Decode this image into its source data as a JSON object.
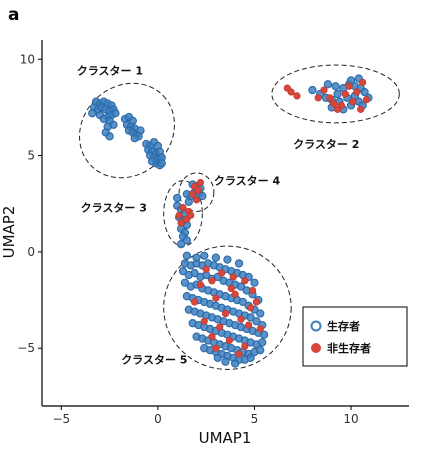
{
  "panel_label": "a",
  "colors": {
    "survivor": "#3d7fbf",
    "nonsurvivor": "#d9463b",
    "survivor_edge": "#2a6aa8",
    "survivor_fill": "#ffffff"
  },
  "chart_data": {
    "type": "scatter",
    "xlabel": "UMAP1",
    "ylabel": "UMAP2",
    "xlim": [
      -6.0,
      13.0
    ],
    "ylim": [
      -8.0,
      11.0
    ],
    "xticks": [
      -5,
      0,
      5,
      10
    ],
    "yticks": [
      -5,
      0,
      5,
      10
    ],
    "grid": false,
    "legend_position": "bottom-right",
    "legend": [
      {
        "key": "survivor",
        "label": "生存者"
      },
      {
        "key": "nonsurvivor",
        "label": "非生存者"
      }
    ],
    "clusters": [
      {
        "label": "クラスター 1",
        "center": [
          -1.6,
          6.3
        ],
        "rx": 2.6,
        "ry": 2.3,
        "angle": -44,
        "label_at": [
          -4.2,
          9.2
        ]
      },
      {
        "label": "クラスター 2",
        "center": [
          9.2,
          8.2
        ],
        "rx": 3.3,
        "ry": 1.5,
        "angle": 0,
        "label_at": [
          7.0,
          5.4
        ]
      },
      {
        "label": "クラスター 3",
        "center": [
          1.3,
          2.0
        ],
        "rx": 1.0,
        "ry": 1.7,
        "angle": 0,
        "label_at": [
          -4.0,
          2.1
        ]
      },
      {
        "label": "クラスター 4",
        "center": [
          2.0,
          3.1
        ],
        "rx": 0.9,
        "ry": 1.0,
        "angle": 0,
        "label_at": [
          2.9,
          3.5
        ]
      },
      {
        "label": "クラスター 5",
        "center": [
          3.6,
          -2.9
        ],
        "rx": 3.3,
        "ry": 3.2,
        "angle": 0,
        "label_at": [
          -1.9,
          -5.8
        ]
      }
    ],
    "series": [
      {
        "name": "生存者",
        "key": "survivor",
        "points": [
          [
            -3.2,
            7.8
          ],
          [
            -3.0,
            7.7
          ],
          [
            -2.8,
            7.8
          ],
          [
            -2.6,
            7.7
          ],
          [
            -2.4,
            7.6
          ],
          [
            -3.3,
            7.5
          ],
          [
            -3.1,
            7.4
          ],
          [
            -2.9,
            7.5
          ],
          [
            -2.7,
            7.4
          ],
          [
            -2.5,
            7.3
          ],
          [
            -2.3,
            7.4
          ],
          [
            -3.4,
            7.2
          ],
          [
            -3.0,
            7.1
          ],
          [
            -2.6,
            7.0
          ],
          [
            -2.4,
            7.1
          ],
          [
            -2.2,
            7.2
          ],
          [
            -2.8,
            6.9
          ],
          [
            -2.5,
            6.8
          ],
          [
            -2.3,
            6.6
          ],
          [
            -2.6,
            6.5
          ],
          [
            -2.7,
            6.2
          ],
          [
            -2.5,
            6.0
          ],
          [
            -1.7,
            6.9
          ],
          [
            -1.5,
            7.0
          ],
          [
            -1.3,
            6.8
          ],
          [
            -1.6,
            6.6
          ],
          [
            -1.4,
            6.5
          ],
          [
            -1.2,
            6.4
          ],
          [
            -1.5,
            6.3
          ],
          [
            -1.3,
            6.2
          ],
          [
            -1.1,
            6.1
          ],
          [
            -0.9,
            6.3
          ],
          [
            -1.0,
            6.0
          ],
          [
            -1.2,
            5.9
          ],
          [
            -0.6,
            5.6
          ],
          [
            -0.4,
            5.5
          ],
          [
            -0.2,
            5.7
          ],
          [
            0.0,
            5.5
          ],
          [
            -0.5,
            5.3
          ],
          [
            -0.3,
            5.2
          ],
          [
            -0.1,
            5.1
          ],
          [
            0.1,
            5.2
          ],
          [
            -0.4,
            5.0
          ],
          [
            -0.2,
            4.9
          ],
          [
            0.0,
            4.8
          ],
          [
            0.2,
            4.9
          ],
          [
            -0.1,
            4.6
          ],
          [
            0.1,
            4.5
          ],
          [
            -0.3,
            4.7
          ],
          [
            0.2,
            4.6
          ],
          [
            8.0,
            8.4
          ],
          [
            8.4,
            8.2
          ],
          [
            8.7,
            8.0
          ],
          [
            9.0,
            7.9
          ],
          [
            9.3,
            8.2
          ],
          [
            9.6,
            8.5
          ],
          [
            9.9,
            8.7
          ],
          [
            10.2,
            8.6
          ],
          [
            10.5,
            8.5
          ],
          [
            10.7,
            8.3
          ],
          [
            10.9,
            8.0
          ],
          [
            10.2,
            8.1
          ],
          [
            9.8,
            8.0
          ],
          [
            9.4,
            7.8
          ],
          [
            9.0,
            7.5
          ],
          [
            9.6,
            7.4
          ],
          [
            10.0,
            7.6
          ],
          [
            10.4,
            7.8
          ],
          [
            10.6,
            7.6
          ],
          [
            9.2,
            8.6
          ],
          [
            8.8,
            8.7
          ],
          [
            10.0,
            8.9
          ],
          [
            10.4,
            9.0
          ],
          [
            1.0,
            2.4
          ],
          [
            1.2,
            2.2
          ],
          [
            1.4,
            2.0
          ],
          [
            1.1,
            1.8
          ],
          [
            1.3,
            1.6
          ],
          [
            1.5,
            1.4
          ],
          [
            1.2,
            1.2
          ],
          [
            1.4,
            1.0
          ],
          [
            1.3,
            0.8
          ],
          [
            1.5,
            0.6
          ],
          [
            1.2,
            0.4
          ],
          [
            1.6,
            2.6
          ],
          [
            1.0,
            2.8
          ],
          [
            1.7,
            2.9
          ],
          [
            1.5,
            3.0
          ],
          [
            1.8,
            3.5
          ],
          [
            2.0,
            3.4
          ],
          [
            2.2,
            3.3
          ],
          [
            1.9,
            3.1
          ],
          [
            2.1,
            3.0
          ],
          [
            2.3,
            2.9
          ],
          [
            1.4,
            -0.6
          ],
          [
            1.7,
            -0.7
          ],
          [
            2.0,
            -0.6
          ],
          [
            2.3,
            -0.7
          ],
          [
            2.6,
            -0.6
          ],
          [
            2.9,
            -0.7
          ],
          [
            3.2,
            -0.8
          ],
          [
            3.5,
            -0.9
          ],
          [
            3.8,
            -1.0
          ],
          [
            4.1,
            -1.1
          ],
          [
            4.4,
            -1.2
          ],
          [
            4.7,
            -1.3
          ],
          [
            5.0,
            -1.6
          ],
          [
            1.3,
            -1.0
          ],
          [
            1.6,
            -1.2
          ],
          [
            1.9,
            -1.1
          ],
          [
            2.2,
            -1.3
          ],
          [
            2.5,
            -1.2
          ],
          [
            2.8,
            -1.4
          ],
          [
            3.1,
            -1.3
          ],
          [
            3.4,
            -1.5
          ],
          [
            3.7,
            -1.6
          ],
          [
            4.0,
            -1.7
          ],
          [
            4.3,
            -1.8
          ],
          [
            4.6,
            -2.0
          ],
          [
            4.9,
            -2.2
          ],
          [
            5.2,
            -2.5
          ],
          [
            1.4,
            -1.6
          ],
          [
            1.7,
            -1.8
          ],
          [
            2.0,
            -1.7
          ],
          [
            2.3,
            -1.9
          ],
          [
            2.6,
            -2.0
          ],
          [
            2.9,
            -2.1
          ],
          [
            3.2,
            -2.2
          ],
          [
            3.5,
            -2.3
          ],
          [
            3.8,
            -2.4
          ],
          [
            4.1,
            -2.5
          ],
          [
            4.4,
            -2.6
          ],
          [
            4.7,
            -2.8
          ],
          [
            5.0,
            -3.0
          ],
          [
            5.3,
            -3.2
          ],
          [
            1.5,
            -2.3
          ],
          [
            1.8,
            -2.4
          ],
          [
            2.1,
            -2.5
          ],
          [
            2.4,
            -2.6
          ],
          [
            2.7,
            -2.7
          ],
          [
            3.0,
            -2.8
          ],
          [
            3.3,
            -2.9
          ],
          [
            3.6,
            -3.0
          ],
          [
            3.9,
            -3.1
          ],
          [
            4.2,
            -3.2
          ],
          [
            4.5,
            -3.3
          ],
          [
            4.8,
            -3.4
          ],
          [
            5.1,
            -3.6
          ],
          [
            5.4,
            -3.8
          ],
          [
            1.6,
            -3.0
          ],
          [
            1.9,
            -3.1
          ],
          [
            2.2,
            -3.2
          ],
          [
            2.5,
            -3.3
          ],
          [
            2.8,
            -3.4
          ],
          [
            3.1,
            -3.5
          ],
          [
            3.4,
            -3.6
          ],
          [
            3.7,
            -3.7
          ],
          [
            4.0,
            -3.8
          ],
          [
            4.3,
            -3.9
          ],
          [
            4.6,
            -4.0
          ],
          [
            4.9,
            -4.1
          ],
          [
            5.2,
            -4.2
          ],
          [
            5.5,
            -4.3
          ],
          [
            1.8,
            -3.7
          ],
          [
            2.1,
            -3.8
          ],
          [
            2.4,
            -3.9
          ],
          [
            2.7,
            -4.0
          ],
          [
            3.0,
            -4.1
          ],
          [
            3.3,
            -4.2
          ],
          [
            3.6,
            -4.3
          ],
          [
            3.9,
            -4.4
          ],
          [
            4.2,
            -4.5
          ],
          [
            4.5,
            -4.6
          ],
          [
            4.8,
            -4.7
          ],
          [
            5.1,
            -4.8
          ],
          [
            5.4,
            -4.7
          ],
          [
            2.0,
            -4.4
          ],
          [
            2.3,
            -4.5
          ],
          [
            2.6,
            -4.6
          ],
          [
            2.9,
            -4.7
          ],
          [
            3.2,
            -4.8
          ],
          [
            3.5,
            -4.9
          ],
          [
            3.8,
            -5.0
          ],
          [
            4.1,
            -5.1
          ],
          [
            4.4,
            -5.2
          ],
          [
            4.7,
            -5.3
          ],
          [
            5.0,
            -5.2
          ],
          [
            5.3,
            -5.1
          ],
          [
            2.4,
            -5.0
          ],
          [
            2.7,
            -5.1
          ],
          [
            3.0,
            -5.2
          ],
          [
            3.3,
            -5.3
          ],
          [
            3.6,
            -5.4
          ],
          [
            3.9,
            -5.5
          ],
          [
            4.2,
            -5.6
          ],
          [
            4.5,
            -5.6
          ],
          [
            4.8,
            -5.5
          ],
          [
            3.1,
            -5.5
          ],
          [
            3.5,
            -5.7
          ],
          [
            4.0,
            -5.8
          ],
          [
            2.0,
            -0.3
          ],
          [
            2.4,
            -0.2
          ],
          [
            3.0,
            -0.3
          ],
          [
            3.6,
            -0.4
          ],
          [
            4.2,
            -0.6
          ],
          [
            1.5,
            -0.2
          ]
        ]
      },
      {
        "name": "非生存者",
        "key": "nonsurvivor",
        "points": [
          [
            6.7,
            8.5
          ],
          [
            6.9,
            8.3
          ],
          [
            7.2,
            8.1
          ],
          [
            8.3,
            8.0
          ],
          [
            8.6,
            8.4
          ],
          [
            9.1,
            7.7
          ],
          [
            9.5,
            7.6
          ],
          [
            9.7,
            8.2
          ],
          [
            10.1,
            7.8
          ],
          [
            10.5,
            7.4
          ],
          [
            10.8,
            7.9
          ],
          [
            9.9,
            8.6
          ],
          [
            10.3,
            8.3
          ],
          [
            8.9,
            8.0
          ],
          [
            10.6,
            8.8
          ],
          [
            9.3,
            7.4
          ],
          [
            1.9,
            3.4
          ],
          [
            2.1,
            3.2
          ],
          [
            1.8,
            3.0
          ],
          [
            2.2,
            3.6
          ],
          [
            2.0,
            2.7
          ],
          [
            1.3,
            2.3
          ],
          [
            1.1,
            1.9
          ],
          [
            1.5,
            1.7
          ],
          [
            1.6,
            2.1
          ],
          [
            1.2,
            1.5
          ],
          [
            1.7,
            1.9
          ],
          [
            2.5,
            -0.9
          ],
          [
            3.3,
            -1.1
          ],
          [
            3.9,
            -1.3
          ],
          [
            4.5,
            -1.5
          ],
          [
            2.2,
            -1.7
          ],
          [
            3.0,
            -2.4
          ],
          [
            4.0,
            -2.2
          ],
          [
            4.9,
            -2.0
          ],
          [
            5.1,
            -2.6
          ],
          [
            3.5,
            -3.2
          ],
          [
            4.3,
            -3.5
          ],
          [
            2.4,
            -3.6
          ],
          [
            3.2,
            -3.9
          ],
          [
            4.7,
            -3.8
          ],
          [
            5.3,
            -4.0
          ],
          [
            2.8,
            -4.4
          ],
          [
            3.7,
            -4.6
          ],
          [
            4.5,
            -4.9
          ],
          [
            3.0,
            -5.0
          ],
          [
            4.2,
            -5.3
          ],
          [
            3.8,
            -1.9
          ],
          [
            2.8,
            -1.5
          ],
          [
            1.9,
            -2.6
          ],
          [
            4.8,
            -2.9
          ]
        ]
      }
    ]
  }
}
